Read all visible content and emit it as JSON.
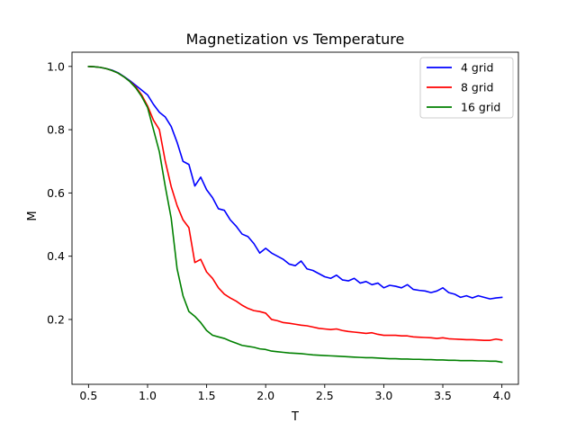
{
  "chart_data": {
    "type": "line",
    "title": "Magnetization vs Temperature",
    "xlabel": "T",
    "ylabel": "M",
    "xlim": [
      0.36,
      4.14
    ],
    "ylim": [
      -0.005,
      1.045
    ],
    "xticks": [
      0.5,
      1.0,
      1.5,
      2.0,
      2.5,
      3.0,
      3.5,
      4.0
    ],
    "xtick_labels": [
      "0.5",
      "1.0",
      "1.5",
      "2.0",
      "2.5",
      "3.0",
      "3.5",
      "4.0"
    ],
    "yticks": [
      0.2,
      0.4,
      0.6,
      0.8,
      1.0
    ],
    "ytick_labels": [
      "0.2",
      "0.4",
      "0.6",
      "0.8",
      "1.0"
    ],
    "grid": false,
    "legend_position": "top-right",
    "x": [
      0.5,
      0.55,
      0.6,
      0.65,
      0.7,
      0.75,
      0.8,
      0.85,
      0.9,
      0.95,
      1.0,
      1.05,
      1.1,
      1.15,
      1.2,
      1.25,
      1.3,
      1.35,
      1.4,
      1.45,
      1.5,
      1.55,
      1.6,
      1.65,
      1.7,
      1.75,
      1.8,
      1.85,
      1.9,
      1.95,
      2.0,
      2.05,
      2.1,
      2.15,
      2.2,
      2.25,
      2.3,
      2.35,
      2.4,
      2.45,
      2.5,
      2.55,
      2.6,
      2.65,
      2.7,
      2.75,
      2.8,
      2.85,
      2.9,
      2.95,
      3.0,
      3.05,
      3.1,
      3.15,
      3.2,
      3.25,
      3.3,
      3.35,
      3.4,
      3.45,
      3.5,
      3.55,
      3.6,
      3.65,
      3.7,
      3.75,
      3.8,
      3.85,
      3.9,
      3.95,
      4.0
    ],
    "series": [
      {
        "name": "4 grid",
        "color": "#0000ff",
        "values": [
          1.0,
          0.999,
          0.997,
          0.993,
          0.988,
          0.98,
          0.968,
          0.955,
          0.94,
          0.925,
          0.91,
          0.88,
          0.855,
          0.84,
          0.81,
          0.76,
          0.7,
          0.69,
          0.622,
          0.65,
          0.61,
          0.585,
          0.55,
          0.545,
          0.515,
          0.495,
          0.47,
          0.462,
          0.44,
          0.41,
          0.425,
          0.41,
          0.4,
          0.39,
          0.375,
          0.37,
          0.385,
          0.36,
          0.355,
          0.345,
          0.335,
          0.33,
          0.34,
          0.325,
          0.322,
          0.33,
          0.315,
          0.32,
          0.31,
          0.315,
          0.3,
          0.308,
          0.305,
          0.3,
          0.31,
          0.295,
          0.292,
          0.29,
          0.285,
          0.29,
          0.3,
          0.285,
          0.28,
          0.27,
          0.275,
          0.268,
          0.275,
          0.27,
          0.265,
          0.268,
          0.27
        ]
      },
      {
        "name": "8 grid",
        "color": "#ff0000",
        "values": [
          1.0,
          0.999,
          0.997,
          0.993,
          0.987,
          0.979,
          0.967,
          0.953,
          0.935,
          0.91,
          0.875,
          0.83,
          0.8,
          0.7,
          0.62,
          0.56,
          0.515,
          0.49,
          0.38,
          0.39,
          0.35,
          0.33,
          0.3,
          0.28,
          0.268,
          0.258,
          0.245,
          0.235,
          0.228,
          0.225,
          0.22,
          0.2,
          0.196,
          0.19,
          0.188,
          0.185,
          0.182,
          0.18,
          0.176,
          0.172,
          0.17,
          0.168,
          0.17,
          0.165,
          0.162,
          0.16,
          0.158,
          0.156,
          0.158,
          0.153,
          0.15,
          0.15,
          0.15,
          0.148,
          0.148,
          0.145,
          0.144,
          0.143,
          0.142,
          0.14,
          0.142,
          0.139,
          0.138,
          0.137,
          0.136,
          0.136,
          0.135,
          0.134,
          0.134,
          0.138,
          0.135
        ]
      },
      {
        "name": "16 grid",
        "color": "#008000",
        "values": [
          1.0,
          0.999,
          0.997,
          0.993,
          0.987,
          0.979,
          0.967,
          0.952,
          0.932,
          0.905,
          0.87,
          0.8,
          0.73,
          0.62,
          0.52,
          0.36,
          0.275,
          0.225,
          0.21,
          0.19,
          0.165,
          0.15,
          0.145,
          0.14,
          0.132,
          0.125,
          0.118,
          0.115,
          0.112,
          0.107,
          0.105,
          0.1,
          0.098,
          0.096,
          0.094,
          0.093,
          0.092,
          0.09,
          0.088,
          0.087,
          0.086,
          0.085,
          0.084,
          0.083,
          0.082,
          0.081,
          0.08,
          0.079,
          0.079,
          0.078,
          0.077,
          0.076,
          0.076,
          0.075,
          0.075,
          0.074,
          0.074,
          0.073,
          0.073,
          0.072,
          0.072,
          0.071,
          0.071,
          0.07,
          0.07,
          0.07,
          0.069,
          0.069,
          0.068,
          0.068,
          0.065
        ]
      }
    ]
  }
}
